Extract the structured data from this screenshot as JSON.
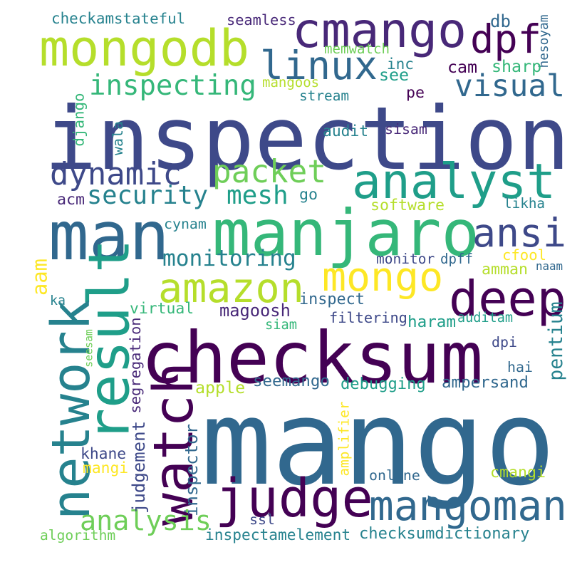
{
  "palette": {
    "purple_dark": "#440154",
    "purple": "#482878",
    "indigo": "#3e4989",
    "blue": "#31688e",
    "teal_blue": "#26828e",
    "teal": "#1f9e89",
    "green_teal": "#35b779",
    "green": "#6ece58",
    "lime": "#b5de2b",
    "yellow": "#fde725",
    "background": "#ffffff"
  },
  "words": [
    {
      "text": "inspection",
      "color": "#3e4989"
    },
    {
      "text": "mango",
      "color": "#31688e"
    },
    {
      "text": "checksum",
      "color": "#440154"
    },
    {
      "text": "manjaro",
      "color": "#35b779"
    },
    {
      "text": "man",
      "color": "#31688e"
    },
    {
      "text": "result",
      "color": "#1f9e89"
    },
    {
      "text": "network",
      "color": "#26828e"
    },
    {
      "text": "judge",
      "color": "#440154"
    },
    {
      "text": "cmango",
      "color": "#482878"
    },
    {
      "text": "mongodb",
      "color": "#b5de2b"
    },
    {
      "text": "analyst",
      "color": "#1f9e89"
    },
    {
      "text": "deep",
      "color": "#440154"
    },
    {
      "text": "mangoman",
      "color": "#31688e"
    },
    {
      "text": "watch",
      "color": "#440154"
    },
    {
      "text": "amazon",
      "color": "#b5de2b"
    },
    {
      "text": "linux",
      "color": "#31688e"
    },
    {
      "text": "ansi",
      "color": "#3e4989"
    },
    {
      "text": "mongo",
      "color": "#fde725"
    },
    {
      "text": "dpf",
      "color": "#440154"
    },
    {
      "text": "inspecting",
      "color": "#35b779"
    },
    {
      "text": "visual",
      "color": "#31688e"
    },
    {
      "text": "dynamic",
      "color": "#3e4989"
    },
    {
      "text": "packet",
      "color": "#6ece58"
    },
    {
      "text": "security",
      "color": "#26828e"
    },
    {
      "text": "mesh",
      "color": "#1f9e89"
    },
    {
      "text": "analysis",
      "color": "#6ece58"
    },
    {
      "text": "monitoring",
      "color": "#26828e"
    },
    {
      "text": "magoosh",
      "color": "#482878"
    },
    {
      "text": "inspect",
      "color": "#31688e"
    },
    {
      "text": "checkam",
      "color": "#26828e"
    },
    {
      "text": "stateful",
      "color": "#26828e"
    },
    {
      "text": "seamless",
      "color": "#482878"
    },
    {
      "text": "memwatch",
      "color": "#6ece58"
    },
    {
      "text": "db",
      "color": "#31688e"
    },
    {
      "text": "hesoyam",
      "color": "#31688e"
    },
    {
      "text": "inc",
      "color": "#26828e"
    },
    {
      "text": "cam",
      "color": "#440154"
    },
    {
      "text": "sharp",
      "color": "#35b779"
    },
    {
      "text": "see",
      "color": "#1f9e89"
    },
    {
      "text": "mangoos",
      "color": "#b5de2b"
    },
    {
      "text": "stream",
      "color": "#26828e"
    },
    {
      "text": "pe",
      "color": "#440154"
    },
    {
      "text": "django",
      "color": "#35b779"
    },
    {
      "text": "wala",
      "color": "#26828e"
    },
    {
      "text": "audit",
      "color": "#26828e"
    },
    {
      "text": "sisam",
      "color": "#482878"
    },
    {
      "text": "acm",
      "color": "#482878"
    },
    {
      "text": "go",
      "color": "#26828e"
    },
    {
      "text": "software",
      "color": "#b5de2b"
    },
    {
      "text": "likha",
      "color": "#26828e"
    },
    {
      "text": "cynam",
      "color": "#26828e"
    },
    {
      "text": "monitor",
      "color": "#3e4989"
    },
    {
      "text": "dpff",
      "color": "#31688e"
    },
    {
      "text": "cfool",
      "color": "#fde725"
    },
    {
      "text": "amman",
      "color": "#b5de2b"
    },
    {
      "text": "naam",
      "color": "#31688e"
    },
    {
      "text": "aam",
      "color": "#fde725"
    },
    {
      "text": "ka",
      "color": "#26828e"
    },
    {
      "text": "virtual",
      "color": "#35b779"
    },
    {
      "text": "siam",
      "color": "#35b779"
    },
    {
      "text": "filtering",
      "color": "#3e4989"
    },
    {
      "text": "haram",
      "color": "#1f9e89"
    },
    {
      "text": "auditam",
      "color": "#1f9e89"
    },
    {
      "text": "pentium",
      "color": "#26828e"
    },
    {
      "text": "dpi",
      "color": "#3e4989"
    },
    {
      "text": "hai",
      "color": "#31688e"
    },
    {
      "text": "seesam",
      "color": "#6ece58"
    },
    {
      "text": "segregation",
      "color": "#482878"
    },
    {
      "text": "apple",
      "color": "#b5de2b"
    },
    {
      "text": "seemango",
      "color": "#31688e"
    },
    {
      "text": "debugging",
      "color": "#1f9e89"
    },
    {
      "text": "ampersand",
      "color": "#31688e"
    },
    {
      "text": "judgement",
      "color": "#3e4989"
    },
    {
      "text": "inspector",
      "color": "#31688e"
    },
    {
      "text": "khane",
      "color": "#3e4989"
    },
    {
      "text": "mangi",
      "color": "#fde725"
    },
    {
      "text": "amplifier",
      "color": "#fde725"
    },
    {
      "text": "online",
      "color": "#31688e"
    },
    {
      "text": "cmangi",
      "color": "#b5de2b"
    },
    {
      "text": "ssl",
      "color": "#3e4989"
    },
    {
      "text": "algorithm",
      "color": "#6ece58"
    },
    {
      "text": "inspectamelement",
      "color": "#26828e"
    },
    {
      "text": "checksumdictionary",
      "color": "#26828e"
    }
  ]
}
